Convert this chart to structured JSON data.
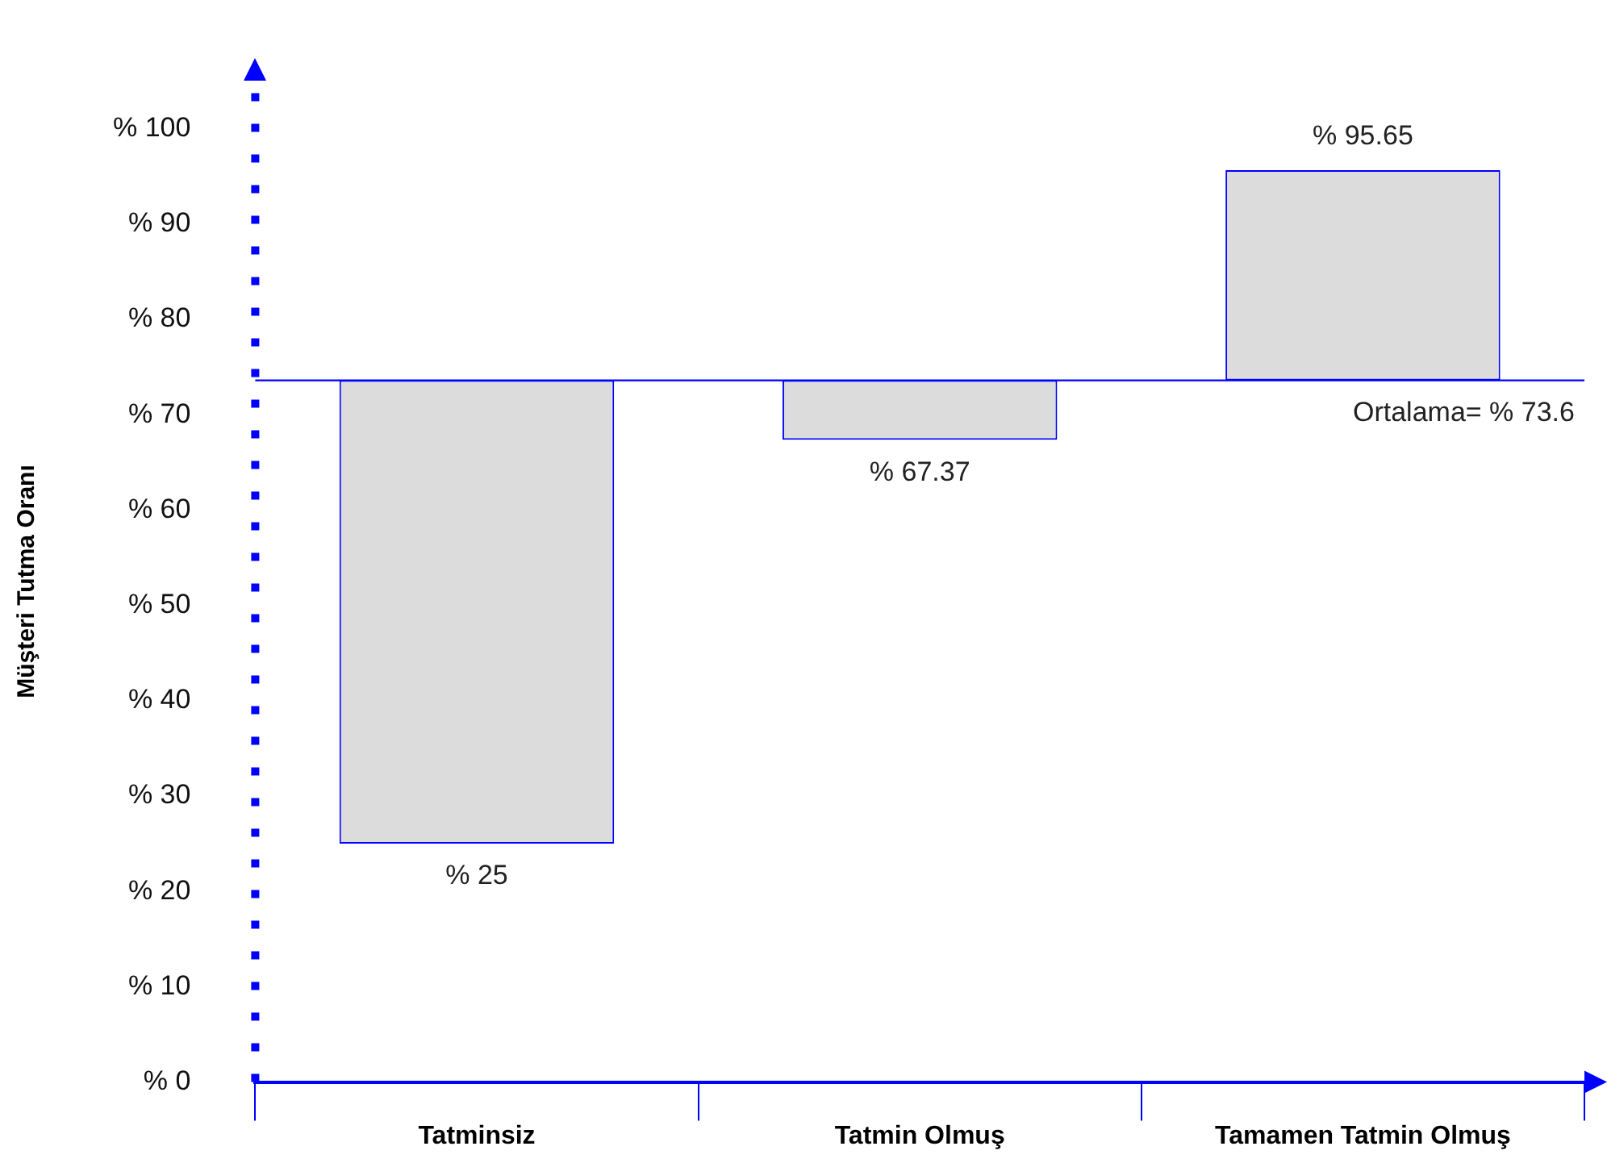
{
  "chart_data": {
    "type": "bar",
    "ylabel": "Müşteri Tutma Oranı",
    "categories": [
      "Tatminsiz",
      "Tatmin Olmuş",
      "Tamamen Tatmin Olmuş"
    ],
    "base": [
      73.6,
      73.6,
      73.6
    ],
    "values": [
      -48.6,
      -6.23,
      22.05
    ],
    "value_labels": [
      "% 25",
      "% 67.37",
      "% 95.65"
    ],
    "color": "#dcdcdc",
    "ylim": [
      0,
      105
    ],
    "yticks": [
      {
        "value": 0,
        "label": "% 0"
      },
      {
        "value": 10,
        "label": "% 10"
      },
      {
        "value": 20,
        "label": "% 20"
      },
      {
        "value": 30,
        "label": "% 30"
      },
      {
        "value": 40,
        "label": "% 40"
      },
      {
        "value": 50,
        "label": "% 50"
      },
      {
        "value": 60,
        "label": "% 60"
      },
      {
        "value": 70,
        "label": "% 70"
      },
      {
        "value": 80,
        "label": "% 80"
      },
      {
        "value": 90,
        "label": "% 90"
      },
      {
        "value": 100,
        "label": "% 100"
      }
    ],
    "ref_lines": [
      {
        "axis": "y",
        "value": 73.6,
        "label": "Ortalama= % 73.6",
        "color": "#0000ff"
      }
    ],
    "grid": false,
    "legend": false
  }
}
